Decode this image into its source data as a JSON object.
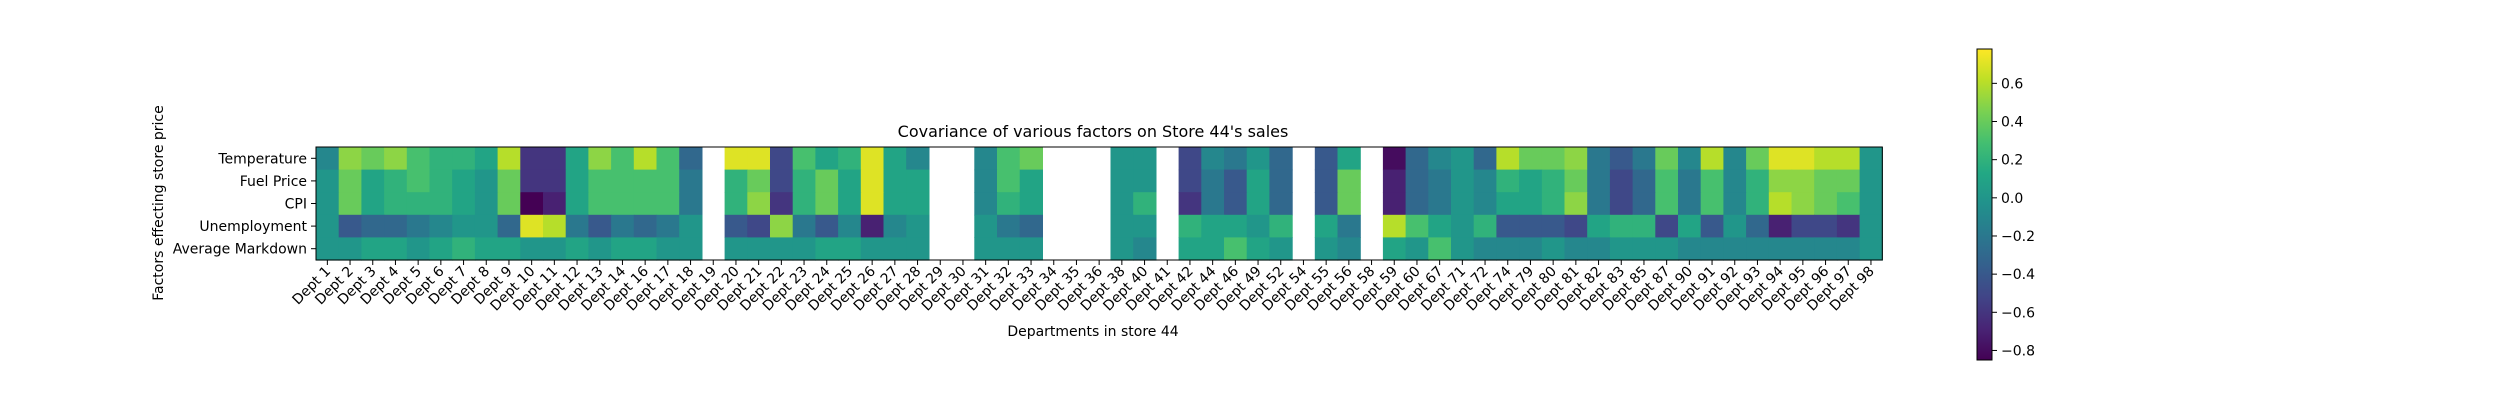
{
  "chart_data": {
    "type": "heatmap",
    "title": "Covariance of various factors on Store 44's sales",
    "xlabel": "Departments in store 44",
    "ylabel": "Factors effecting store price",
    "rows": [
      "Temperature",
      "Fuel Price",
      "CPI",
      "Unemployment",
      "Average Markdown"
    ],
    "columns": [
      "Dept 1",
      "Dept 2",
      "Dept 3",
      "Dept 4",
      "Dept 5",
      "Dept 6",
      "Dept 7",
      "Dept 8",
      "Dept 9",
      "Dept 10",
      "Dept 11",
      "Dept 12",
      "Dept 13",
      "Dept 14",
      "Dept 16",
      "Dept 17",
      "Dept 18",
      "Dept 19",
      "Dept 20",
      "Dept 21",
      "Dept 22",
      "Dept 23",
      "Dept 24",
      "Dept 25",
      "Dept 26",
      "Dept 27",
      "Dept 28",
      "Dept 29",
      "Dept 30",
      "Dept 31",
      "Dept 32",
      "Dept 33",
      "Dept 34",
      "Dept 35",
      "Dept 36",
      "Dept 38",
      "Dept 40",
      "Dept 41",
      "Dept 42",
      "Dept 44",
      "Dept 46",
      "Dept 49",
      "Dept 52",
      "Dept 54",
      "Dept 55",
      "Dept 56",
      "Dept 58",
      "Dept 59",
      "Dept 60",
      "Dept 67",
      "Dept 71",
      "Dept 72",
      "Dept 74",
      "Dept 79",
      "Dept 80",
      "Dept 81",
      "Dept 82",
      "Dept 83",
      "Dept 85",
      "Dept 87",
      "Dept 90",
      "Dept 91",
      "Dept 92",
      "Dept 93",
      "Dept 94",
      "Dept 95",
      "Dept 96",
      "Dept 97",
      "Dept 98"
    ],
    "values": [
      [
        -0.1,
        0.5,
        0.4,
        0.5,
        0.3,
        0.2,
        0.2,
        0.1,
        0.6,
        -0.6,
        -0.6,
        0.1,
        0.5,
        0.3,
        0.6,
        0.3,
        -0.3,
        null,
        0.7,
        0.7,
        -0.5,
        0.3,
        0.1,
        0.2,
        0.7,
        0.1,
        -0.1,
        null,
        null,
        -0.1,
        0.3,
        0.4,
        null,
        null,
        null,
        0.0,
        0.0,
        null,
        -0.5,
        -0.1,
        -0.2,
        0.0,
        -0.3,
        null,
        -0.4,
        0.1,
        null,
        -0.8,
        -0.3,
        -0.1,
        0.0,
        -0.3,
        0.6,
        0.4,
        0.4,
        0.5,
        -0.2,
        -0.4,
        -0.2,
        0.4,
        -0.1,
        0.6,
        -0.1,
        0.4,
        0.7,
        0.7,
        0.6,
        0.6,
        0.0
      ],
      [
        0.0,
        0.4,
        0.1,
        0.2,
        0.3,
        0.2,
        0.1,
        0.0,
        0.4,
        -0.6,
        -0.6,
        0.1,
        0.3,
        0.3,
        0.3,
        0.3,
        -0.2,
        null,
        0.2,
        0.4,
        -0.5,
        0.2,
        0.4,
        0.1,
        0.7,
        0.1,
        0.1,
        null,
        null,
        -0.1,
        0.3,
        0.1,
        null,
        null,
        null,
        0.0,
        0.0,
        null,
        -0.5,
        -0.2,
        -0.4,
        0.1,
        -0.3,
        null,
        -0.4,
        0.4,
        null,
        -0.7,
        -0.3,
        -0.2,
        0.0,
        -0.1,
        0.2,
        0.1,
        0.2,
        0.4,
        -0.2,
        -0.5,
        -0.3,
        0.3,
        -0.2,
        0.3,
        -0.1,
        0.2,
        0.5,
        0.5,
        0.4,
        0.4,
        0.0
      ],
      [
        0.0,
        0.4,
        0.1,
        0.2,
        0.2,
        0.2,
        0.1,
        0.0,
        0.4,
        -0.85,
        -0.7,
        0.1,
        0.3,
        0.3,
        0.3,
        0.3,
        -0.2,
        null,
        0.2,
        0.5,
        -0.6,
        0.2,
        0.4,
        0.1,
        0.7,
        0.1,
        0.1,
        null,
        null,
        -0.1,
        0.2,
        0.1,
        null,
        null,
        null,
        0.0,
        0.2,
        null,
        -0.6,
        -0.2,
        -0.4,
        0.1,
        -0.3,
        null,
        -0.4,
        0.4,
        null,
        -0.7,
        -0.3,
        -0.2,
        0.0,
        -0.1,
        0.1,
        0.1,
        0.2,
        0.5,
        -0.2,
        -0.5,
        -0.3,
        0.3,
        -0.2,
        0.3,
        -0.1,
        0.2,
        0.6,
        0.5,
        0.4,
        0.3,
        0.0
      ],
      [
        0.0,
        -0.4,
        -0.3,
        -0.3,
        -0.2,
        -0.1,
        0.0,
        0.0,
        -0.3,
        0.7,
        0.6,
        -0.2,
        -0.4,
        -0.2,
        -0.3,
        -0.2,
        0.0,
        null,
        -0.4,
        -0.5,
        0.5,
        -0.2,
        -0.4,
        -0.1,
        -0.7,
        -0.1,
        0.0,
        null,
        null,
        0.0,
        -0.2,
        -0.3,
        null,
        null,
        null,
        0.0,
        0.0,
        null,
        0.2,
        0.1,
        0.1,
        0.0,
        0.2,
        null,
        0.1,
        -0.2,
        null,
        0.6,
        0.3,
        0.1,
        0.0,
        0.2,
        -0.4,
        -0.4,
        -0.4,
        -0.5,
        0.1,
        0.2,
        0.2,
        -0.5,
        0.1,
        -0.4,
        0.0,
        -0.3,
        -0.7,
        -0.5,
        -0.5,
        -0.6,
        0.0
      ],
      [
        0.0,
        0.0,
        0.1,
        0.1,
        0.0,
        0.1,
        0.2,
        0.1,
        0.1,
        0.0,
        0.0,
        0.1,
        0.0,
        0.1,
        0.1,
        0.0,
        0.0,
        null,
        0.0,
        0.0,
        0.0,
        0.0,
        0.1,
        0.1,
        0.0,
        0.0,
        0.0,
        null,
        null,
        0.0,
        0.0,
        0.0,
        null,
        null,
        null,
        0.0,
        -0.1,
        null,
        0.1,
        0.1,
        0.3,
        0.1,
        0.0,
        null,
        0.0,
        -0.1,
        null,
        0.1,
        0.0,
        0.3,
        0.0,
        -0.1,
        -0.1,
        -0.1,
        0.0,
        -0.1,
        -0.1,
        0.0,
        0.0,
        0.0,
        -0.1,
        -0.1,
        -0.1,
        -0.1,
        -0.1,
        -0.1,
        -0.1,
        -0.1,
        0.0
      ]
    ],
    "colorbar": {
      "vmin": -0.85,
      "vmax": 0.78,
      "ticks": [
        "0.6",
        "0.4",
        "0.2",
        "0.0",
        "−0.2",
        "−0.4",
        "−0.6",
        "−0.8"
      ]
    },
    "colormap": "viridis",
    "grid": false,
    "legend": "colorbar-right"
  }
}
